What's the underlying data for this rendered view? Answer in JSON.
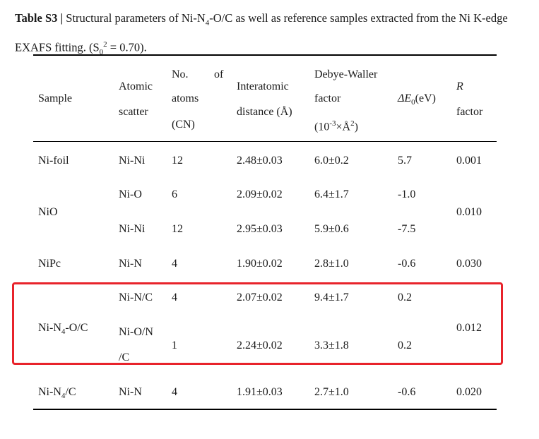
{
  "caption": {
    "label": "Table S3 |",
    "text_part1": " Structural parameters of Ni-N",
    "sub1": "4",
    "text_part2": "-O/C as well as reference samples extracted from the Ni K-edge EXAFS fitting. (S",
    "sub2": "0",
    "sup2": "2",
    "text_part3": " = 0.70)."
  },
  "headers": {
    "sample": "Sample",
    "scatter": [
      "Atomic",
      "scatter"
    ],
    "cn": [
      "No.",
      "of",
      "atoms",
      "(CN)"
    ],
    "distance": [
      "Interatomic",
      "distance (Å)"
    ],
    "dw": [
      "Debye-Waller",
      "factor"
    ],
    "dw_unit_a": "(10",
    "dw_unit_exp": "-3",
    "dw_unit_b": "×Å",
    "dw_unit_sq": "2",
    "dw_unit_c": ")",
    "de_delta": "ΔE",
    "de_sub": "0",
    "de_unit": "(eV)",
    "r_italic": "R",
    "r_factor": "factor"
  },
  "rows": {
    "nifoil": {
      "sample": "Ni-foil",
      "scatter": "Ni-Ni",
      "cn": "12",
      "dist": "2.48±0.03",
      "dw": "6.0±0.2",
      "de": "5.7",
      "r": "0.001"
    },
    "nio_a": {
      "scatter": "Ni-O",
      "cn": "6",
      "dist": "2.09±0.02",
      "dw": "6.4±1.7",
      "de": "-1.0"
    },
    "nio": {
      "sample": "NiO",
      "r": "0.010"
    },
    "nio_b": {
      "scatter": "Ni-Ni",
      "cn": "12",
      "dist": "2.95±0.03",
      "dw": "5.9±0.6",
      "de": "-7.5"
    },
    "nipc": {
      "sample": "NiPc",
      "scatter": "Ni-N",
      "cn": "4",
      "dist": "1.90±0.02",
      "dw": "2.8±1.0",
      "de": "-0.6",
      "r": "0.030"
    },
    "nin4oc_a": {
      "scatter": "Ni-N/C",
      "cn": "4",
      "dist": "2.07±0.02",
      "dw": "9.4±1.7",
      "de": "0.2"
    },
    "nin4oc": {
      "sample_a": "Ni-N",
      "sample_sub": "4",
      "sample_b": "-O/C",
      "r": "0.012"
    },
    "nin4oc_b": {
      "scatter_a": "Ni-O/N",
      "scatter_b": "/C",
      "cn": "1",
      "dist": "2.24±0.02",
      "dw": "3.3±1.8",
      "de": "0.2"
    },
    "nin4c": {
      "sample_a": "Ni-N",
      "sample_sub": "4",
      "sample_b": "/C",
      "scatter": "Ni-N",
      "cn": "4",
      "dist": "1.91±0.03",
      "dw": "2.7±1.0",
      "de": "-0.6",
      "r": "0.020"
    }
  },
  "highlight_color": "#e8232b"
}
